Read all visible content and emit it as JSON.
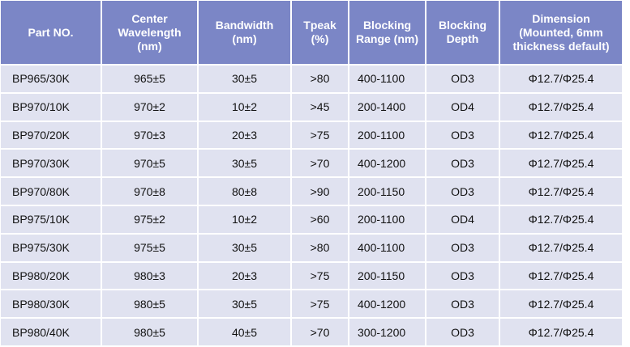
{
  "columns": [
    "Part NO.",
    "Center Wavelength (nm)",
    "Bandwidth (nm)",
    "Tpeak (%)",
    "Blocking Range (nm)",
    "Blocking Depth",
    "Dimension (Mounted, 6mm thickness default)"
  ],
  "header_color": "#7b86c6",
  "row_color": "#e0e2f0",
  "rows": [
    [
      "BP965/30K",
      "965±5",
      "30±5",
      ">80",
      "400-1100",
      "OD3",
      "Φ12.7/Φ25.4"
    ],
    [
      "BP970/10K",
      "970±2",
      "10±2",
      ">45",
      "200-1400",
      "OD4",
      "Φ12.7/Φ25.4"
    ],
    [
      "BP970/20K",
      "970±3",
      "20±3",
      ">75",
      "200-1100",
      "OD3",
      "Φ12.7/Φ25.4"
    ],
    [
      "BP970/30K",
      "970±5",
      "30±5",
      ">70",
      "400-1200",
      "OD3",
      "Φ12.7/Φ25.4"
    ],
    [
      "BP970/80K",
      "970±8",
      "80±8",
      ">90",
      "200-1150",
      "OD3",
      "Φ12.7/Φ25.4"
    ],
    [
      "BP975/10K",
      "975±2",
      "10±2",
      ">60",
      "200-1100",
      "OD4",
      "Φ12.7/Φ25.4"
    ],
    [
      "BP975/30K",
      "975±5",
      "30±5",
      ">80",
      "400-1100",
      "OD3",
      "Φ12.7/Φ25.4"
    ],
    [
      "BP980/20K",
      "980±3",
      "20±3",
      ">75",
      "200-1150",
      "OD3",
      "Φ12.7/Φ25.4"
    ],
    [
      "BP980/30K",
      "980±5",
      "30±5",
      ">75",
      "400-1200",
      "OD3",
      "Φ12.7/Φ25.4"
    ],
    [
      "BP980/40K",
      "980±5",
      "40±5",
      ">70",
      "300-1200",
      "OD3",
      "Φ12.7/Φ25.4"
    ]
  ]
}
